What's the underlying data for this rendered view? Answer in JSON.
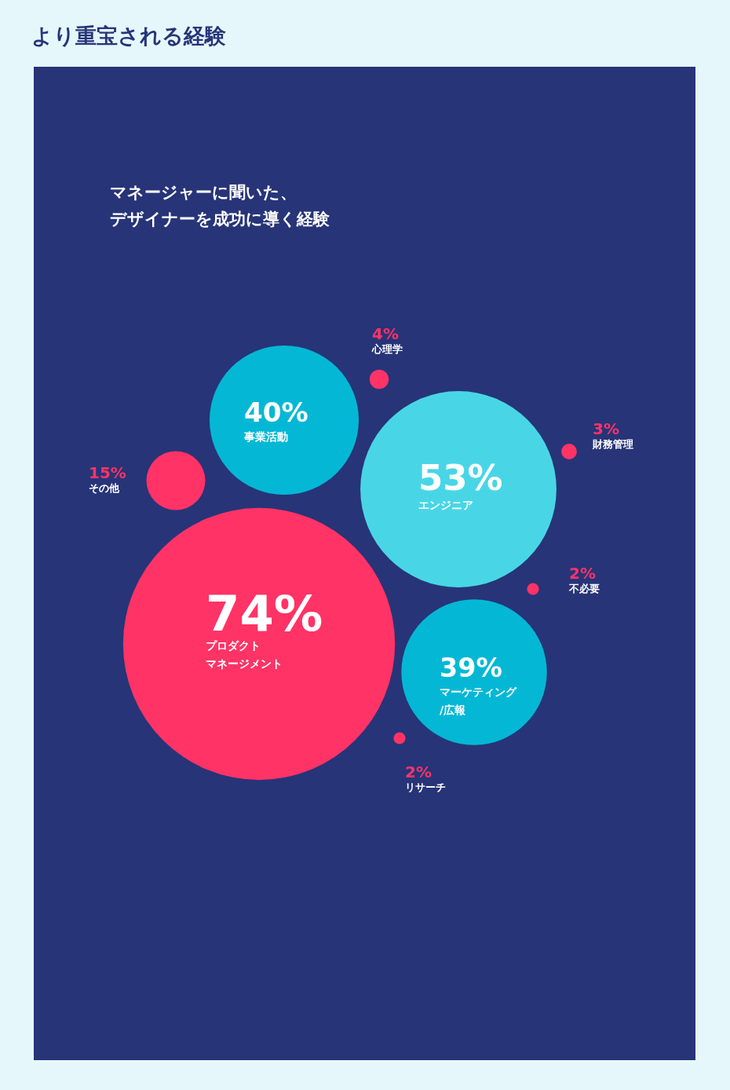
{
  "chart_data": {
    "type": "other",
    "title": "より重宝される経験",
    "subtitle": "マネージャーに聞いた、デザイナーを成功に導く経験",
    "categories": [
      "心理学",
      "事業活動",
      "財務管理",
      "その他",
      "エンジニア",
      "不必要",
      "プロダクトマネージメント",
      "マーケティング/広報",
      "リサーチ"
    ],
    "values": [
      4,
      40,
      3,
      15,
      53,
      2,
      74,
      39,
      2
    ],
    "value_labels": [
      "4%",
      "40%",
      "3%",
      "15%",
      "53%",
      "2%",
      "74%",
      "39%",
      "2%"
    ],
    "colors": [
      "#ff3366",
      "#04b8d5",
      "#ff3366",
      "#ff3366",
      "#48d6e6",
      "#ff3366",
      "#ff3366",
      "#04b8d5",
      "#ff3366"
    ]
  }
}
